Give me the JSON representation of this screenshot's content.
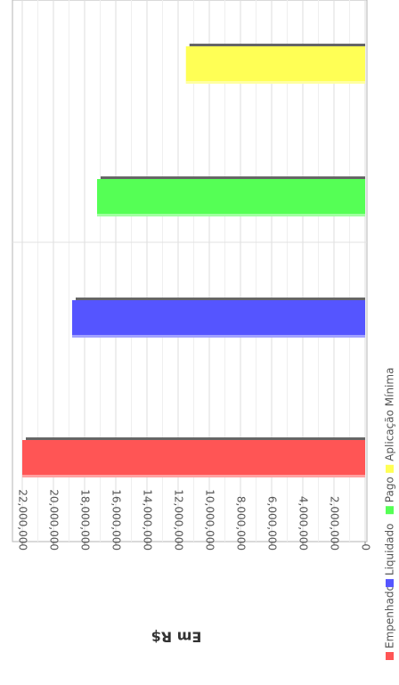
{
  "chart_data": {
    "type": "bar",
    "orientation": "rotated-90-clockwise",
    "ylabel": "Em R$",
    "ylim": [
      0,
      24000000
    ],
    "y_ticks": [
      "0",
      "2,000,000",
      "4,000,000",
      "6,000,000",
      "8,000,000",
      "10,000,000",
      "12,000,000",
      "14,000,000",
      "16,000,000",
      "18,000,000",
      "20,000,000",
      "22,000,000"
    ],
    "tick_values": [
      0,
      2000000,
      4000000,
      6000000,
      8000000,
      10000000,
      12000000,
      14000000,
      16000000,
      18000000,
      20000000,
      22000000
    ],
    "grid": true,
    "legend_position": "bottom",
    "series": [
      {
        "name": "Empenhado",
        "values": [
          22000000
        ],
        "color": "#ff5555"
      },
      {
        "name": "Liquidado",
        "values": [
          18800000
        ],
        "color": "#5555ff"
      },
      {
        "name": "Pago",
        "values": [
          17200000
        ],
        "color": "#55ff55"
      },
      {
        "name": "Aplicação Mínima",
        "values": [
          11500000
        ],
        "color": "#ffff55"
      }
    ]
  }
}
